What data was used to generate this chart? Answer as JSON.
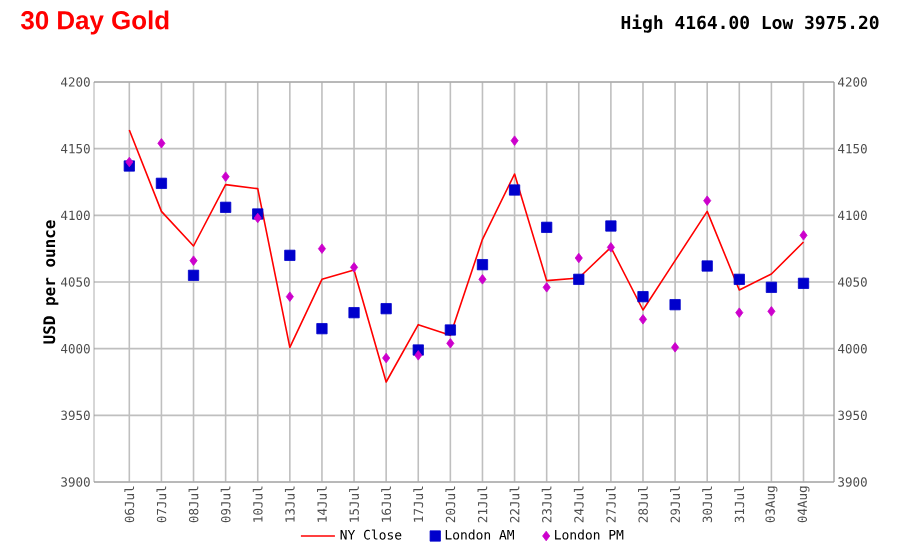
{
  "chart_data": {
    "type": "line",
    "title": "30 Day Gold",
    "subtitle": "High 4164.00 Low 3975.20",
    "ylabel": "USD per ounce",
    "categories": [
      "06Jul",
      "07Jul",
      "08Jul",
      "09Jul",
      "10Jul",
      "13Jul",
      "14Jul",
      "15Jul",
      "16Jul",
      "17Jul",
      "20Jul",
      "21Jul",
      "22Jul",
      "23Jul",
      "24Jul",
      "27Jul",
      "28Jul",
      "29Jul",
      "30Jul",
      "31Jul",
      "03Aug",
      "04Aug"
    ],
    "series": [
      {
        "name": "NY Close",
        "marker": "none",
        "color": "#ff0000",
        "values": [
          4164,
          4103,
          4077,
          4123,
          4120,
          4001,
          4052,
          4059,
          3975,
          4018,
          4010,
          4082,
          4131,
          4051,
          4053,
          4076,
          4029,
          4066,
          4103,
          4044,
          4056,
          4080
        ]
      },
      {
        "name": "London AM",
        "type": "scatter",
        "marker": "square",
        "color": "#0000cc",
        "values": [
          4137,
          4124,
          4055,
          4106,
          4101,
          4070,
          4015,
          4027,
          4030,
          3999,
          4014,
          4063,
          4119,
          4091,
          4052,
          4092,
          4039,
          4033,
          4062,
          4052,
          4046,
          4049
        ]
      },
      {
        "name": "London PM",
        "type": "scatter",
        "marker": "diamond",
        "color": "#cc00cc",
        "values": [
          4140,
          4154,
          4066,
          4129,
          4098,
          4039,
          4075,
          4061,
          3993,
          3995,
          4004,
          4052,
          4156,
          4046,
          4068,
          4076,
          4022,
          4001,
          4111,
          4027,
          4028,
          4085
        ]
      }
    ],
    "ylim": [
      3900,
      4200
    ],
    "yticks": [
      3900,
      3950,
      4000,
      4050,
      4100,
      4150,
      4200
    ],
    "y2lim": [
      3900,
      4200
    ],
    "y2ticks": [
      3900,
      3950,
      4000,
      4050,
      4100,
      4150,
      4200
    ],
    "grid": true,
    "legend": "bottom"
  }
}
